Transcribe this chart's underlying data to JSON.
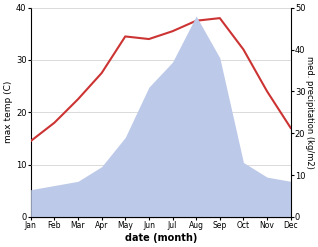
{
  "months": [
    "Jan",
    "Feb",
    "Mar",
    "Apr",
    "May",
    "Jun",
    "Jul",
    "Aug",
    "Sep",
    "Oct",
    "Nov",
    "Dec"
  ],
  "temperature": [
    14.5,
    18.0,
    22.5,
    27.5,
    34.5,
    34.0,
    35.5,
    37.5,
    38.0,
    32.0,
    24.0,
    17.0
  ],
  "precipitation": [
    6.5,
    7.5,
    8.5,
    12.0,
    19.0,
    31.0,
    37.0,
    48.0,
    38.0,
    13.0,
    9.5,
    8.5
  ],
  "temp_color": "#cc3333",
  "precip_fill_color": "#bdc9e8",
  "ylabel_left": "max temp (C)",
  "ylabel_right": "med. precipitation (kg/m2)",
  "xlabel": "date (month)",
  "ylim_left": [
    0,
    40
  ],
  "ylim_right": [
    0,
    50
  ],
  "yticks_left": [
    0,
    10,
    20,
    30,
    40
  ],
  "yticks_right": [
    0,
    10,
    20,
    30,
    40,
    50
  ],
  "bg_color": "#ffffff"
}
